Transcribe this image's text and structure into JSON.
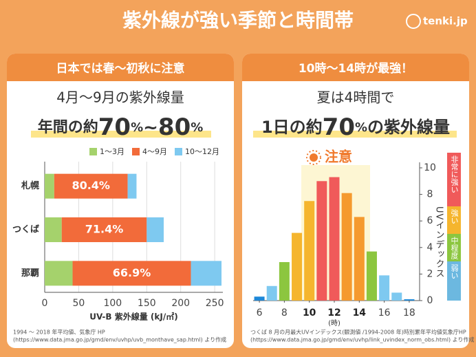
{
  "header": {
    "title": "紫外線が強い季節と時間帯",
    "logo": "tenki.jp"
  },
  "chart_data": [
    {
      "type": "bar",
      "orientation": "horizontal",
      "stacked": true,
      "panel_title": "日本では春～初秋に注意",
      "subtitle": "4月～9月の紫外線量",
      "headline": [
        "年間の約",
        "70",
        "%",
        "~",
        "80",
        "%"
      ],
      "categories": [
        "札幌",
        "つくば",
        "那覇"
      ],
      "series": [
        {
          "name": "1～3月",
          "color": "#a5d26c",
          "values": [
            14,
            25,
            41
          ]
        },
        {
          "name": "4～9月",
          "color": "#f26b3a",
          "values": [
            108,
            125,
            174
          ]
        },
        {
          "name": "10～12月",
          "color": "#7ec9f0",
          "values": [
            13,
            25,
            45
          ]
        }
      ],
      "annotations": [
        "80.4%",
        "71.4%",
        "66.9%"
      ],
      "xlim": [
        0,
        262
      ],
      "xticks": [
        0,
        50,
        100,
        150,
        200,
        250
      ],
      "x_label": "UV-B 紫外線量 (kJ/㎡)",
      "grid": true,
      "source": [
        "1994 ～ 2018 年平均値、気象庁 HP",
        "(https://www.data.jma.go.jp/gmd/env/uvhp/uvb_monthave_sap.html) より作成"
      ]
    },
    {
      "type": "bar",
      "orientation": "vertical",
      "panel_title": "10時～14時が最強！",
      "subtitle": "夏は4時間で",
      "headline": [
        "1日の約",
        "70",
        "%",
        "の紫外線量"
      ],
      "note": "注意",
      "x": [
        6,
        7,
        8,
        9,
        10,
        11,
        12,
        13,
        14,
        15,
        16,
        17,
        18
      ],
      "values": [
        0.3,
        1.1,
        2.9,
        5.1,
        7.5,
        9.0,
        9.3,
        8.1,
        6.3,
        3.7,
        1.9,
        0.6,
        0.1
      ],
      "colors": [
        "#1e88d8",
        "#7ec9f0",
        "#8cc63f",
        "#f5b52e",
        "#f5b52e",
        "#f05a5a",
        "#f05a5a",
        "#f59a2e",
        "#f59a2e",
        "#8cc63f",
        "#7ec9f0",
        "#7ec9f0",
        "#1e88d8"
      ],
      "xlim": [
        5.5,
        18.5
      ],
      "xticks": [
        6,
        8,
        10,
        12,
        14,
        16,
        18
      ],
      "x_label": "(時)",
      "ylim": [
        0,
        10
      ],
      "yticks": [
        0,
        2,
        4,
        6,
        8,
        10
      ],
      "y_label": "UVインデックス",
      "levels": [
        {
          "name": "非常に強い",
          "color": "#f05a5a"
        },
        {
          "name": "強い",
          "color": "#f5b52e"
        },
        {
          "name": "中程度",
          "color": "#8cc63f"
        },
        {
          "name": "弱い",
          "color": "#6cb8e0"
        }
      ],
      "source": [
        "つくば 8 月の月最大UVインデックス(観測値 /1994-2008 年)時別累年平均値気象庁HP",
        "(https://www.data.jma.go.jp/gmd/env/uvhp/link_uvindex_norm_obs.html) より作成"
      ]
    }
  ]
}
